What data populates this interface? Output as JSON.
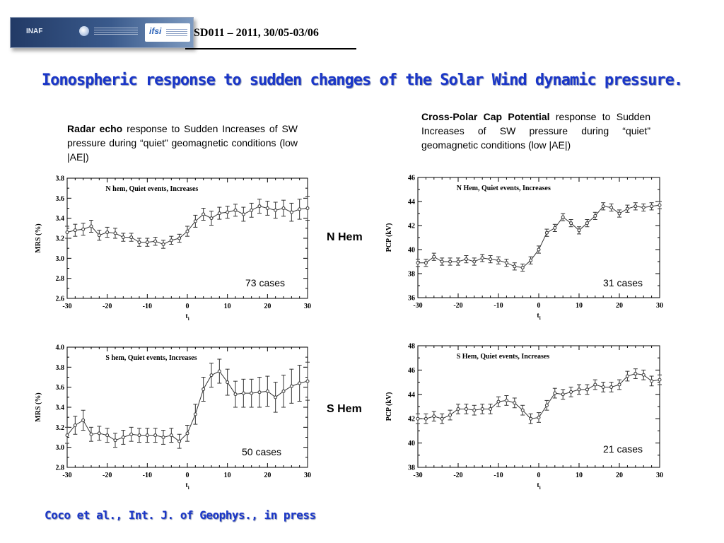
{
  "header": {
    "logos": {
      "left": "INAF",
      "right": "ifsi"
    },
    "event_code": "SD011 – 2011, 30/05-03/06",
    "title": "Ionospheric response to sudden changes of the Solar Wind dynamic pressure."
  },
  "descriptions": {
    "left": {
      "bold": "Radar echo",
      "rest": " response to Sudden Increases of SW pressure during “quiet” geomagnetic conditions (low |AE|)"
    },
    "right": {
      "bold": "Cross-Polar Cap Potential",
      "rest": " response to Sudden Increases of SW pressure during “quiet” geomagnetic conditions (low |AE|)"
    }
  },
  "labels": {
    "n_hem": "N Hem",
    "s_hem": "S Hem"
  },
  "footer": "Coco et al., Int. J. of Geophys., in press",
  "colors": {
    "title": "#1a36c8",
    "series": "#333333"
  },
  "chart_data": [
    {
      "id": "mrs-n",
      "type": "line",
      "title": "N hem, Quiet events, Increases",
      "xlabel": "t_i",
      "ylabel": "MRS (%)",
      "xlim": [
        -30,
        30
      ],
      "ylim": [
        2.6,
        3.8
      ],
      "xticks": [
        -30,
        -20,
        -10,
        0,
        10,
        20,
        30
      ],
      "yticks": [
        2.6,
        2.8,
        3.0,
        3.2,
        3.4,
        3.6,
        3.8
      ],
      "yfmt": 1,
      "cases": "73 cases",
      "x": [
        -30,
        -28,
        -26,
        -24,
        -22,
        -20,
        -18,
        -16,
        -14,
        -12,
        -10,
        -8,
        -6,
        -4,
        -2,
        0,
        2,
        4,
        6,
        8,
        10,
        12,
        14,
        16,
        18,
        20,
        22,
        24,
        26,
        28,
        30
      ],
      "y": [
        3.26,
        3.28,
        3.29,
        3.32,
        3.23,
        3.26,
        3.25,
        3.21,
        3.21,
        3.16,
        3.16,
        3.17,
        3.14,
        3.18,
        3.2,
        3.27,
        3.37,
        3.44,
        3.4,
        3.45,
        3.46,
        3.48,
        3.44,
        3.48,
        3.52,
        3.5,
        3.48,
        3.5,
        3.46,
        3.49,
        3.5
      ],
      "err": [
        0.06,
        0.06,
        0.06,
        0.06,
        0.05,
        0.05,
        0.05,
        0.04,
        0.04,
        0.04,
        0.04,
        0.04,
        0.04,
        0.04,
        0.04,
        0.05,
        0.06,
        0.06,
        0.07,
        0.06,
        0.06,
        0.06,
        0.07,
        0.07,
        0.07,
        0.07,
        0.08,
        0.08,
        0.09,
        0.1,
        0.12
      ]
    },
    {
      "id": "pcp-n",
      "type": "line",
      "title": "N Hem, Quiet events, Increases",
      "xlabel": "t_i",
      "ylabel": "PCP (kV)",
      "xlim": [
        -30,
        30
      ],
      "ylim": [
        36,
        46
      ],
      "xticks": [
        -30,
        -20,
        -10,
        0,
        10,
        20,
        30
      ],
      "yticks": [
        36,
        38,
        40,
        42,
        44,
        46
      ],
      "yfmt": 0,
      "cases": "31 cases",
      "x": [
        -30,
        -28,
        -26,
        -24,
        -22,
        -20,
        -18,
        -16,
        -14,
        -12,
        -10,
        -8,
        -6,
        -4,
        -2,
        0,
        2,
        4,
        6,
        8,
        10,
        12,
        14,
        16,
        18,
        20,
        22,
        24,
        26,
        28,
        30
      ],
      "y": [
        38.9,
        38.9,
        39.4,
        39.0,
        39.0,
        39.0,
        39.2,
        39.0,
        39.3,
        39.2,
        39.1,
        38.9,
        38.6,
        38.5,
        39.1,
        40.0,
        41.4,
        41.8,
        42.7,
        42.2,
        41.6,
        42.2,
        42.8,
        43.6,
        43.5,
        43.0,
        43.4,
        43.6,
        43.5,
        43.6,
        43.7
      ],
      "err": [
        0.3,
        0.3,
        0.3,
        0.3,
        0.3,
        0.3,
        0.3,
        0.3,
        0.3,
        0.3,
        0.3,
        0.3,
        0.3,
        0.3,
        0.3,
        0.3,
        0.3,
        0.3,
        0.3,
        0.3,
        0.3,
        0.3,
        0.3,
        0.3,
        0.3,
        0.3,
        0.3,
        0.3,
        0.3,
        0.3,
        0.3
      ]
    },
    {
      "id": "mrs-s",
      "type": "line",
      "title": "S hem, Quiet events, Increases",
      "xlabel": "t_i",
      "ylabel": "MRS (%)",
      "xlim": [
        -30,
        30
      ],
      "ylim": [
        2.8,
        4.0
      ],
      "xticks": [
        -30,
        -20,
        -10,
        0,
        10,
        20,
        30
      ],
      "yticks": [
        2.8,
        3.0,
        3.2,
        3.4,
        3.6,
        3.8,
        4.0
      ],
      "yfmt": 1,
      "cases": "50 cases",
      "x": [
        -30,
        -28,
        -26,
        -24,
        -22,
        -20,
        -18,
        -16,
        -14,
        -12,
        -10,
        -8,
        -6,
        -4,
        -2,
        0,
        2,
        4,
        6,
        8,
        10,
        12,
        14,
        16,
        18,
        20,
        22,
        24,
        26,
        28,
        30
      ],
      "y": [
        3.12,
        3.22,
        3.27,
        3.13,
        3.14,
        3.12,
        3.07,
        3.1,
        3.13,
        3.12,
        3.12,
        3.12,
        3.1,
        3.12,
        3.06,
        3.14,
        3.33,
        3.58,
        3.72,
        3.76,
        3.65,
        3.53,
        3.54,
        3.54,
        3.55,
        3.56,
        3.5,
        3.56,
        3.61,
        3.64,
        3.66
      ],
      "err": [
        0.08,
        0.09,
        0.1,
        0.07,
        0.07,
        0.07,
        0.07,
        0.07,
        0.07,
        0.07,
        0.07,
        0.07,
        0.07,
        0.07,
        0.07,
        0.08,
        0.1,
        0.12,
        0.12,
        0.12,
        0.13,
        0.13,
        0.14,
        0.14,
        0.15,
        0.15,
        0.15,
        0.16,
        0.17,
        0.18,
        0.19
      ]
    },
    {
      "id": "pcp-s",
      "type": "line",
      "title": "S Hem, Quiet events, Increases",
      "xlabel": "t_i",
      "ylabel": "PCP (kV)",
      "xlim": [
        -30,
        30
      ],
      "ylim": [
        38,
        48
      ],
      "xticks": [
        -30,
        -20,
        -10,
        0,
        10,
        20,
        30
      ],
      "yticks": [
        38,
        40,
        42,
        44,
        46,
        48
      ],
      "yfmt": 0,
      "cases": "21 cases",
      "x": [
        -30,
        -28,
        -26,
        -24,
        -22,
        -20,
        -18,
        -16,
        -14,
        -12,
        -10,
        -8,
        -6,
        -4,
        -2,
        0,
        2,
        4,
        6,
        8,
        10,
        12,
        14,
        16,
        18,
        20,
        22,
        24,
        26,
        28,
        30
      ],
      "y": [
        42.0,
        42.0,
        42.2,
        42.0,
        42.3,
        42.8,
        42.8,
        42.7,
        42.8,
        42.8,
        43.4,
        43.5,
        43.3,
        42.7,
        42.0,
        42.1,
        43.1,
        44.1,
        44.0,
        44.2,
        44.4,
        44.4,
        44.8,
        44.6,
        44.6,
        44.8,
        45.5,
        45.7,
        45.6,
        45.1,
        45.2
      ],
      "err": [
        0.4,
        0.4,
        0.4,
        0.4,
        0.4,
        0.4,
        0.4,
        0.4,
        0.4,
        0.4,
        0.4,
        0.4,
        0.4,
        0.4,
        0.4,
        0.4,
        0.4,
        0.4,
        0.4,
        0.4,
        0.4,
        0.4,
        0.4,
        0.4,
        0.4,
        0.4,
        0.4,
        0.4,
        0.4,
        0.4,
        0.4
      ]
    }
  ]
}
